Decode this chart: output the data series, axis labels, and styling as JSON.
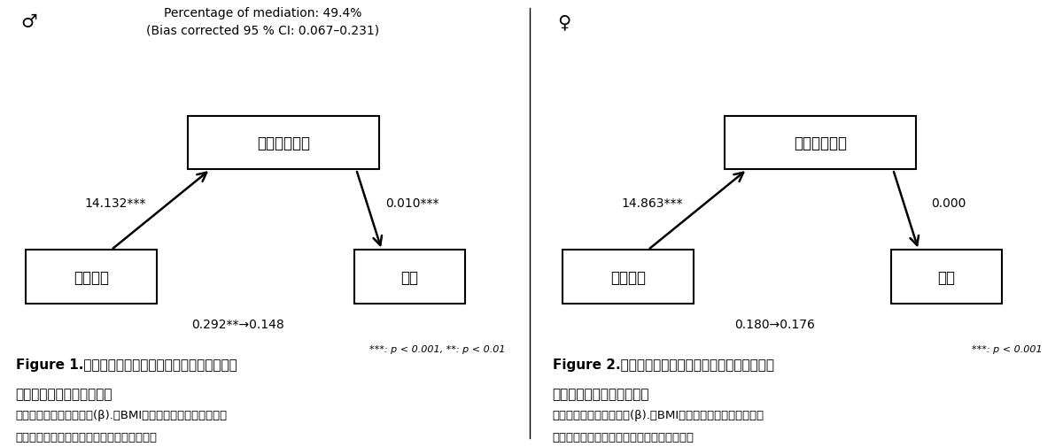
{
  "left_panel": {
    "gender_symbol": "♂",
    "header_line1": "Percentage of mediation: 49.4%",
    "header_line2": "(Bias corrected 95 % CI: 0.067–0.231)",
    "box_top_label": "有酸素性能力",
    "box_left_label": "身体活動",
    "box_right_label": "学力",
    "arrow_left_label": "14.132***",
    "arrow_right_label": "0.010***",
    "arrow_bottom_label": "0.292**→0.148",
    "sig_note": "***: p < 0.001, **: p < 0.01",
    "fig_title_line1": "Figure 1.　有酸素性能力の身体活動と学力との関連",
    "fig_title_line2": "における媒介効果（男子）",
    "fig_note_line1": "数値は非標準化回帰係数(β).　BMI，家族構成，　親の学歴，",
    "fig_note_line2": "自己充実的達成動機，競争的達成動機を調整"
  },
  "right_panel": {
    "gender_symbol": "♀",
    "box_top_label": "有酸素性能力",
    "box_left_label": "身体活動",
    "box_right_label": "学力",
    "arrow_left_label": "14.863***",
    "arrow_right_label": "0.000",
    "arrow_bottom_label": "0.180→0.176",
    "sig_note": "***: p < 0.001",
    "fig_title_line1": "Figure 2.　有酸素性能力の身体活動と学力との関連",
    "fig_title_line2": "における媒介効果（女子）",
    "fig_note_line1": "数値は非標準化回帰係数(β).　BMI，家族構成，　親の学歴，",
    "fig_note_line2": "自己充実的達成動機，競争的達成動機を調整"
  }
}
